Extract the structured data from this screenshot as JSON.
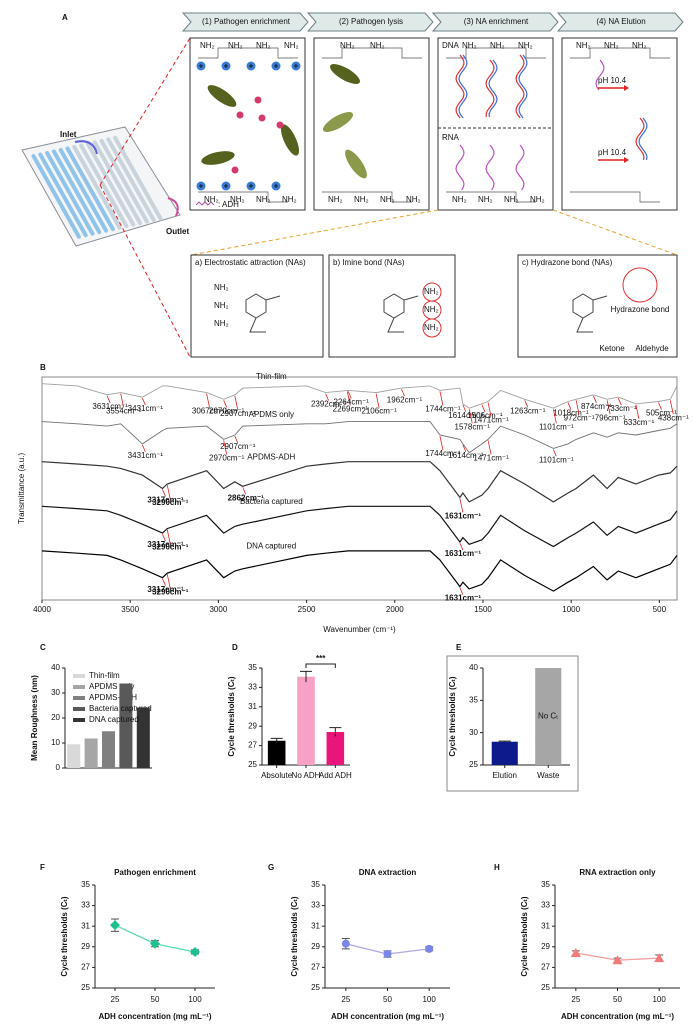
{
  "diagram": {
    "panel": "A",
    "steps": [
      "(1) Pathogen enrichment",
      "(2) Pathogen lysis",
      "(3) NA enrichment",
      "(4) NA Elution"
    ],
    "inlet": "Inlet",
    "outlet": "Outlet",
    "adh_legend": ": ADH",
    "amine": "NH₂",
    "dna": "DNA",
    "rna": "RNA",
    "ph": "pH 10.4",
    "mechanisms": [
      "a) Electrostatic attraction (NAs)",
      "b) Imine bond (NAs)",
      "c) Hydrazone bond (NAs)"
    ],
    "hydrazone": "Hydrazone bond",
    "ketone": "Ketone",
    "aldehyde": "Aldehyde"
  },
  "chart_data": [
    {
      "panel": "B",
      "type": "line",
      "x_label": "Wavenumber (cm⁻¹)",
      "y_label": "Transmittance (a.u.)",
      "x": [
        4000,
        3800,
        3631,
        3554,
        3431,
        3317,
        3290,
        3067,
        2970,
        2907,
        2862,
        2500,
        2392,
        2264,
        2106,
        1962,
        1800,
        1744,
        1631,
        1614,
        1578,
        1506,
        1471,
        1400,
        1263,
        1101,
        1018,
        972,
        874,
        796,
        733,
        633,
        505,
        438,
        400
      ],
      "xlim": [
        4000,
        400
      ],
      "xticks": [
        4000,
        3500,
        3000,
        2500,
        2000,
        1500,
        1000,
        500
      ],
      "ylim": [
        0,
        100
      ],
      "series": [
        {
          "name": "Thin-film",
          "color": "#a0a0a0",
          "values": [
            97,
            96,
            92,
            93,
            91,
            96,
            96,
            93,
            90,
            92,
            95,
            96,
            93,
            94,
            93,
            95,
            96,
            94,
            95,
            88,
            86,
            88,
            89,
            94,
            90,
            86,
            89,
            90,
            92,
            90,
            91,
            88,
            89,
            90,
            96
          ],
          "annotations": [
            {
              "x": 3631,
              "label": "3631cm⁻¹"
            },
            {
              "x": 3554,
              "label": "3554cm⁻¹"
            },
            {
              "x": 3431,
              "label": "3431cm⁻¹"
            },
            {
              "x": 3067,
              "label": "3067cm⁻¹"
            },
            {
              "x": 2970,
              "label": "2970cm⁻¹"
            },
            {
              "x": 2907,
              "label": "2907cm⁻¹"
            },
            {
              "x": 2392,
              "label": "2392cm⁻¹"
            },
            {
              "x": 2269,
              "label": "2269cm⁻¹"
            },
            {
              "x": 2264,
              "label": "2264cm⁻¹"
            },
            {
              "x": 2106,
              "label": "2106cm⁻¹"
            },
            {
              "x": 1962,
              "label": "1962cm⁻¹"
            },
            {
              "x": 1744,
              "label": "1744cm⁻¹"
            },
            {
              "x": 1614,
              "label": "1614cm⁻¹"
            },
            {
              "x": 1578,
              "label": "1578cm⁻¹"
            },
            {
              "x": 1506,
              "label": "1506cm⁻¹"
            },
            {
              "x": 1471,
              "label": "1471cm⁻¹"
            },
            {
              "x": 1263,
              "label": "1263cm⁻¹"
            },
            {
              "x": 1101,
              "label": "1101cm⁻¹"
            },
            {
              "x": 1018,
              "label": "1018cm⁻¹"
            },
            {
              "x": 972,
              "label": "972cm⁻¹"
            },
            {
              "x": 874,
              "label": "874cm⁻¹"
            },
            {
              "x": 796,
              "label": "796cm⁻¹"
            },
            {
              "x": 733,
              "label": "733cm⁻¹"
            },
            {
              "x": 633,
              "label": "633cm⁻¹"
            },
            {
              "x": 505,
              "label": "505cm⁻¹"
            },
            {
              "x": 438,
              "label": "438cm⁻¹"
            }
          ]
        },
        {
          "name": "APDMS only",
          "color": "#707070",
          "values": [
            80,
            79,
            78,
            79,
            70,
            76,
            77,
            78,
            72,
            74,
            78,
            79,
            79,
            80,
            80,
            80,
            80,
            74,
            72,
            70,
            66,
            70,
            72,
            78,
            74,
            68,
            70,
            72,
            75,
            73,
            75,
            74,
            76,
            77,
            79
          ],
          "annotations": [
            {
              "x": 3431,
              "label": "3431cm⁻¹"
            },
            {
              "x": 2970,
              "label": "2970cm⁻¹"
            },
            {
              "x": 2907,
              "label": "2907cm⁻¹"
            },
            {
              "x": 1744,
              "label": "1744cm⁻¹"
            },
            {
              "x": 1614,
              "label": "1614cm⁻¹"
            },
            {
              "x": 1471,
              "label": "1471cm⁻¹"
            },
            {
              "x": 1101,
              "label": "1101cm⁻¹"
            }
          ]
        },
        {
          "name": "APDMS-ADH",
          "color": "#333333",
          "values": [
            62,
            61,
            60,
            59,
            56,
            50,
            52,
            58,
            50,
            53,
            51,
            60,
            61,
            62,
            62,
            62,
            62,
            58,
            46,
            48,
            44,
            47,
            50,
            58,
            52,
            44,
            48,
            50,
            56,
            50,
            55,
            52,
            56,
            57,
            60
          ],
          "annotations": [
            {
              "x": 3317,
              "label": "3317cm⁻¹"
            },
            {
              "x": 3290,
              "label": "3290cm⁻¹"
            },
            {
              "x": 2862,
              "label": "2862cm⁻¹"
            },
            {
              "x": 1631,
              "label": "1631cm⁻¹"
            }
          ]
        },
        {
          "name": "Bacteria captured",
          "color": "#111111",
          "values": [
            42,
            41,
            40,
            38,
            34,
            30,
            32,
            38,
            30,
            33,
            34,
            40,
            41,
            42,
            42,
            42,
            42,
            38,
            26,
            28,
            25,
            27,
            30,
            38,
            31,
            24,
            28,
            30,
            35,
            29,
            33,
            30,
            34,
            36,
            40
          ],
          "annotations": [
            {
              "x": 3317,
              "label": "3317cm⁻¹"
            },
            {
              "x": 3290,
              "label": "3290cm⁻¹"
            },
            {
              "x": 1631,
              "label": "1631cm⁻¹"
            }
          ]
        },
        {
          "name": "DNA captured",
          "color": "#000000",
          "values": [
            22,
            21,
            20,
            18,
            14,
            10,
            12,
            18,
            10,
            13,
            14,
            20,
            21,
            22,
            22,
            22,
            22,
            18,
            6,
            8,
            5,
            7,
            10,
            18,
            11,
            4,
            8,
            10,
            15,
            9,
            13,
            10,
            14,
            16,
            20
          ],
          "annotations": [
            {
              "x": 3317,
              "label": "3317cm⁻¹"
            },
            {
              "x": 3290,
              "label": "3290cm⁻¹"
            },
            {
              "x": 1631,
              "label": "1631cm⁻¹"
            }
          ]
        }
      ]
    },
    {
      "panel": "C",
      "type": "bar",
      "y_label": "Mean  Roughness (nm)",
      "legend": true,
      "categories": [
        "Thin-film",
        "APDMS only",
        "APDMS-ADH",
        "Bacteria captured",
        "DNA captured"
      ],
      "values": [
        9.5,
        11.8,
        14.7,
        33.8,
        24.2
      ],
      "colors": [
        "#d9d9d9",
        "#a6a6a6",
        "#808080",
        "#595959",
        "#333333"
      ],
      "ylim": [
        0,
        40
      ],
      "yticks": [
        0,
        10,
        20,
        30,
        40
      ]
    },
    {
      "panel": "D",
      "type": "bar",
      "y_label": "Cycle thresholds (Cₜ)",
      "categories": [
        "Absolute",
        "No ADH",
        "Add ADH"
      ],
      "values": [
        27.5,
        34.1,
        28.4
      ],
      "errors": [
        0.25,
        0.55,
        0.45
      ],
      "colors": [
        "#000000",
        "#f7a1c4",
        "#e8157a"
      ],
      "annotation": "***",
      "ylim": [
        25,
        35
      ],
      "yticks": [
        25,
        27,
        29,
        31,
        33,
        35
      ]
    },
    {
      "panel": "E",
      "type": "bar",
      "y_label": "Cycle thresholds (Cₜ)",
      "categories": [
        "Elution",
        "Waste"
      ],
      "values": [
        28.6,
        40
      ],
      "errors": [
        0.1,
        0
      ],
      "colors": [
        "#0d1a8c",
        "#a6a6a6"
      ],
      "annotation": "No Cₜ",
      "ylim": [
        25,
        40
      ],
      "yticks": [
        25,
        30,
        35,
        40
      ]
    },
    {
      "panel": "F",
      "type": "line",
      "title": "Pathogen enrichment",
      "x_label": "ADH concentration (mg mL⁻¹)",
      "y_label": "Cycle thresholds (Cₜ)",
      "categories": [
        "25",
        "50",
        "100"
      ],
      "values": [
        31.1,
        29.3,
        28.5
      ],
      "errors": [
        0.6,
        0.3,
        0.2
      ],
      "color": "#1fbf8f",
      "line_color": "#5fd9b6",
      "marker": "diamond",
      "ylim": [
        25,
        35
      ],
      "yticks": [
        25,
        27,
        29,
        31,
        33,
        35
      ]
    },
    {
      "panel": "G",
      "type": "line",
      "title": "DNA extraction",
      "x_label": "ADH concentration (mg mL⁻¹)",
      "y_label": "Cycle thresholds (Cₜ)",
      "categories": [
        "25",
        "50",
        "100"
      ],
      "values": [
        29.3,
        28.3,
        28.8
      ],
      "errors": [
        0.5,
        0.3,
        0.2
      ],
      "color": "#7a86e8",
      "line_color": "#b5a8e0",
      "marker": "circle",
      "ylim": [
        25,
        35
      ],
      "yticks": [
        25,
        27,
        29,
        31,
        33,
        35
      ]
    },
    {
      "panel": "H",
      "type": "line",
      "title": "RNA extraction only",
      "x_label": "ADH concentration (mg mL⁻¹)",
      "y_label": "Cycle thresholds (Cₜ)",
      "categories": [
        "25",
        "50",
        "100"
      ],
      "values": [
        28.4,
        27.7,
        27.9
      ],
      "errors": [
        0.2,
        0.2,
        0.3
      ],
      "color": "#f07b7b",
      "line_color": "#f2a0a0",
      "marker": "triangle",
      "ylim": [
        25,
        35
      ],
      "yticks": [
        25,
        27,
        29,
        31,
        33,
        35
      ]
    }
  ]
}
